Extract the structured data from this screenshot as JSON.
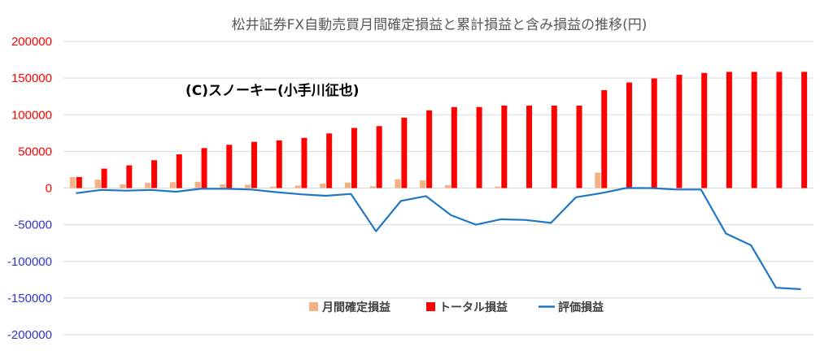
{
  "chart_data": {
    "type": "bar",
    "title": "松井証券FX自動売買月間確定損益と累計損益と含み損益の推移(円)",
    "annotation": "(C)スノーキー(小手川征也)",
    "ylim": [
      -200000,
      200000
    ],
    "yticks": [
      200000,
      150000,
      100000,
      50000,
      0,
      -50000,
      -100000,
      -150000,
      -200000
    ],
    "ytick_labels": [
      "200000",
      "150000",
      "100000",
      "50000",
      "0",
      "-50000",
      "-100000",
      "-150000",
      "-200000"
    ],
    "grid": true,
    "legend_position": "bottom-center",
    "colors": {
      "monthly": "#F4B183",
      "total": "#FF0000",
      "unrealized": "#1F77C4",
      "positive_tick": "#FF0000",
      "negative_tick": "#3333CC",
      "zero_tick": "#FF0000",
      "grid": "#D9D9D9",
      "title": "#595959"
    },
    "series": [
      {
        "name": "月間確定損益",
        "type": "bar",
        "values": [
          15000,
          11500,
          5000,
          7000,
          8000,
          8500,
          5000,
          4500,
          2000,
          3500,
          6000,
          7500,
          2500,
          12000,
          10500,
          4000,
          0,
          2000,
          0,
          0,
          0,
          21000,
          0,
          0,
          0,
          0,
          0,
          0,
          0,
          0
        ]
      },
      {
        "name": "トータル損益",
        "type": "bar",
        "values": [
          15000,
          26500,
          31000,
          38000,
          46000,
          54500,
          59000,
          63000,
          65000,
          68500,
          74500,
          82000,
          84500,
          96000,
          106000,
          110500,
          110500,
          112500,
          112500,
          112500,
          112500,
          133500,
          144000,
          149500,
          154500,
          157000,
          158500,
          158500,
          158500,
          158500
        ]
      },
      {
        "name": "評価損益",
        "type": "line",
        "values": [
          -7000,
          -2500,
          -3500,
          -2500,
          -5000,
          -1000,
          -1000,
          -2000,
          -5500,
          -8500,
          -10500,
          -8000,
          -59000,
          -17500,
          -11000,
          -37000,
          -50000,
          -42500,
          -43500,
          -47500,
          -12500,
          -7000,
          0,
          0,
          -2000,
          -2000,
          -62000,
          -78000,
          -136000,
          -138000
        ]
      }
    ]
  }
}
